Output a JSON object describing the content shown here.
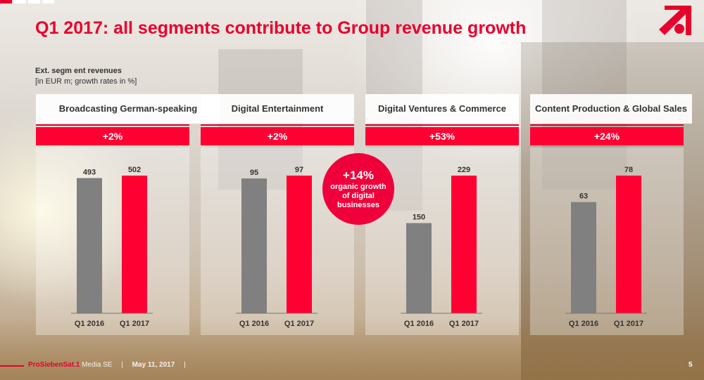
{
  "slide": {
    "title": "Q1 2017: all segments contribute to Group revenue growth",
    "subtitle_bold": "Ext. segm ent revenues",
    "subtitle_unit": "[in EUR m; growth rates in %]",
    "bubble": {
      "value": "+14%",
      "text": "organic growth of digital businesses"
    },
    "footer": {
      "brand": "ProSiebenSat.1",
      "company": "Media SE",
      "separator": "|",
      "date": "May 11, 2017",
      "page": "5"
    },
    "colors": {
      "accent": "#e8002d",
      "bar_2016": "#808080",
      "bar_2017": "#ff0033"
    }
  },
  "chart_data": [
    {
      "type": "bar",
      "title": "Broadcasting German-speaking",
      "growth": "+2%",
      "categories": [
        "Q1 2016",
        "Q1 2017"
      ],
      "values": [
        493,
        502
      ],
      "ylabel": "EUR m"
    },
    {
      "type": "bar",
      "title": "Digital Entertainment",
      "growth": "+2%",
      "categories": [
        "Q1 2016",
        "Q1 2017"
      ],
      "values": [
        95,
        97
      ],
      "ylabel": "EUR m"
    },
    {
      "type": "bar",
      "title": "Digital Ventures & Commerce",
      "growth": "+53%",
      "categories": [
        "Q1 2016",
        "Q1 2017"
      ],
      "values": [
        150,
        229
      ],
      "ylabel": "EUR m"
    },
    {
      "type": "bar",
      "title": "Content Production & Global Sales",
      "growth": "+24%",
      "categories": [
        "Q1 2016",
        "Q1 2017"
      ],
      "values": [
        63,
        78
      ],
      "ylabel": "EUR m"
    }
  ]
}
